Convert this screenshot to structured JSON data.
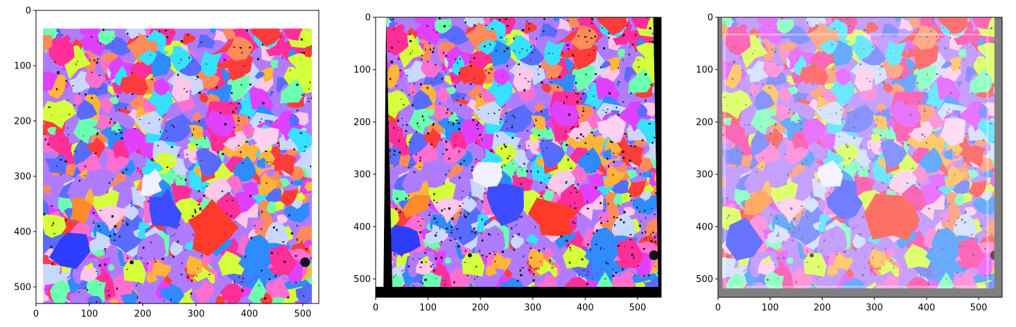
{
  "figure": {
    "background": "#ffffff",
    "panel_count": 3
  },
  "chart_data": [
    {
      "type": "heatmap",
      "title": "",
      "xlabel": "",
      "ylabel": "",
      "description_kind": "EBSD orientation map (IPF colors)",
      "xlim": [
        0,
        530
      ],
      "ylim": [
        530,
        0
      ],
      "xticks": [
        0,
        100,
        200,
        300,
        400,
        500
      ],
      "yticks": [
        0,
        100,
        200,
        300,
        400,
        500
      ],
      "image_extent": {
        "x": [
          13,
          517
        ],
        "y": [
          33,
          530
        ]
      },
      "palette": [
        "#ff3c3c",
        "#ff6fd0",
        "#e040ff",
        "#b07cff",
        "#5a6cff",
        "#2f8bff",
        "#36e0ff",
        "#6bffb0",
        "#d4ff3a",
        "#ffb43a",
        "#ff8a5a",
        "#ffc7e8",
        "#c8d8ff",
        "#ff2e9a"
      ],
      "defect_color": "#000000",
      "grid": false
    },
    {
      "type": "heatmap",
      "title": "",
      "xlabel": "",
      "ylabel": "",
      "description_kind": "Warped orientation map with black padding",
      "xlim": [
        0,
        545
      ],
      "ylim": [
        535,
        0
      ],
      "xticks": [
        0,
        100,
        200,
        300,
        400,
        500
      ],
      "yticks": [
        0,
        100,
        200,
        300,
        400,
        500
      ],
      "image_extent": {
        "x": [
          0,
          545
        ],
        "y": [
          0,
          535
        ]
      },
      "pad_color": "#000000",
      "white_wedge": true,
      "grid": false
    },
    {
      "type": "heatmap",
      "title": "",
      "xlabel": "",
      "ylabel": "",
      "description_kind": "Overlay of reference and warped maps",
      "xlim": [
        0,
        545
      ],
      "ylim": [
        535,
        0
      ],
      "xticks": [
        0,
        100,
        200,
        300,
        400,
        500
      ],
      "yticks": [
        0,
        100,
        200,
        300,
        400,
        500
      ],
      "image_extent": {
        "x": [
          0,
          545
        ],
        "y": [
          0,
          535
        ]
      },
      "pad_color": "#808080",
      "blend": "washed-out overlay",
      "grid": false
    }
  ]
}
